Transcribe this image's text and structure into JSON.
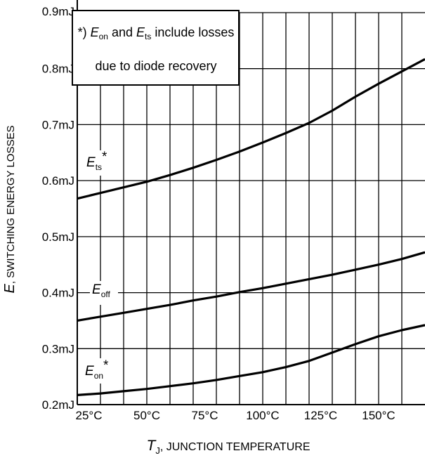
{
  "chart_data": {
    "type": "line",
    "xlabel": {
      "symbol": "T",
      "sub": "J",
      "rest": ", JUNCTION TEMPERATURE"
    },
    "ylabel": {
      "symbol": "E",
      "rest": ", SWITCHING ENERGY LOSSES"
    },
    "x_ticks": [
      "25°C",
      "50°C",
      "75°C",
      "100°C",
      "125°C",
      "150°C"
    ],
    "y_ticks": [
      "0.2mJ",
      "0.3mJ",
      "0.4mJ",
      "0.5mJ",
      "0.6mJ",
      "0.7mJ",
      "0.8mJ",
      "0.9mJ"
    ],
    "xlim": [
      20,
      170
    ],
    "ylim": [
      0.2,
      0.9
    ],
    "grid": true,
    "annotation": {
      "prefix": "*) ",
      "sym1": "E",
      "sub1": "on",
      "mid": " and ",
      "sym2": "E",
      "sub2": "ts",
      "suffix": " include losses",
      "line2": "due to diode recovery"
    },
    "series": [
      {
        "name": "Ets*",
        "label": {
          "symbol": "E",
          "sub": "ts",
          "mark": "*"
        },
        "x": [
          20,
          30,
          40,
          50,
          60,
          70,
          80,
          90,
          100,
          110,
          120,
          130,
          140,
          150,
          160,
          170
        ],
        "y": [
          0.568,
          0.578,
          0.588,
          0.598,
          0.61,
          0.623,
          0.637,
          0.652,
          0.668,
          0.685,
          0.703,
          0.725,
          0.75,
          0.773,
          0.795,
          0.817
        ]
      },
      {
        "name": "Eoff",
        "label": {
          "symbol": "E",
          "sub": "off",
          "mark": ""
        },
        "x": [
          20,
          30,
          40,
          50,
          60,
          70,
          80,
          90,
          100,
          110,
          120,
          130,
          140,
          150,
          160,
          170
        ],
        "y": [
          0.35,
          0.357,
          0.364,
          0.371,
          0.378,
          0.386,
          0.393,
          0.401,
          0.408,
          0.416,
          0.424,
          0.432,
          0.441,
          0.45,
          0.46,
          0.472
        ]
      },
      {
        "name": "Eon*",
        "label": {
          "symbol": "E",
          "sub": "on",
          "mark": "*"
        },
        "x": [
          20,
          30,
          40,
          50,
          60,
          70,
          80,
          90,
          100,
          110,
          120,
          130,
          140,
          150,
          160,
          170
        ],
        "y": [
          0.217,
          0.22,
          0.224,
          0.228,
          0.233,
          0.238,
          0.244,
          0.251,
          0.258,
          0.267,
          0.278,
          0.293,
          0.308,
          0.322,
          0.333,
          0.342
        ]
      }
    ]
  }
}
